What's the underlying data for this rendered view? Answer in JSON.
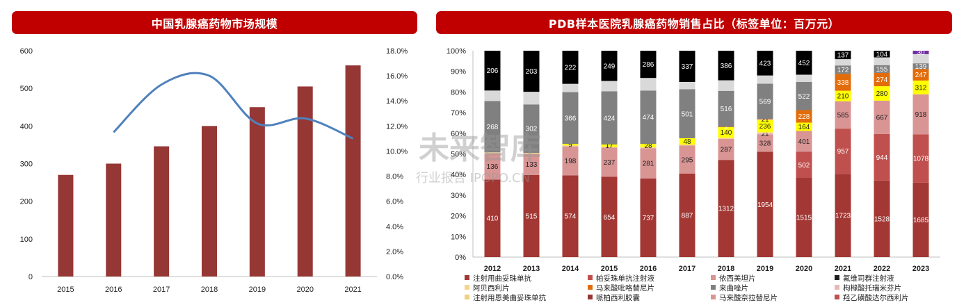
{
  "left_title": "中国乳腺癌药物市场规模",
  "right_title": "PDB样本医院乳腺癌药物销售占比（标签单位：百万元）",
  "watermark": {
    "line1": "未来智库",
    "line2": "行业报告 IPOPO.CN"
  },
  "chart_data": [
    {
      "type": "bar",
      "title": "中国乳腺癌药物市场规模",
      "categories": [
        "2015",
        "2016",
        "2017",
        "2018",
        "2019",
        "2020",
        "2021"
      ],
      "series": [
        {
          "values": [
            270,
            300,
            346,
            400,
            450,
            505,
            561
          ],
          "color": "#953735"
        },
        {
          "type": "line",
          "axis": "right",
          "values": [
            null,
            11.5,
            15.3,
            16.0,
            12.2,
            12.6,
            11.0
          ],
          "color": "#4f81bd"
        }
      ],
      "ylim": [
        0,
        600
      ],
      "yticks": [
        "0",
        "100",
        "200",
        "300",
        "400",
        "500",
        "600"
      ],
      "y2lim": [
        0,
        18
      ],
      "y2ticks": [
        "0.0%",
        "2.0%",
        "4.0%",
        "6.0%",
        "8.0%",
        "10.0%",
        "12.0%",
        "14.0%",
        "16.0%",
        "18.0%"
      ]
    },
    {
      "type": "bar",
      "stacked": "percent",
      "title": "PDB样本医院乳腺癌药物销售占比（标签单位：百万元）",
      "categories": [
        "2012",
        "2013",
        "2014",
        "2015",
        "2016",
        "2017",
        "2018",
        "2019",
        "2020",
        "2021",
        "2022",
        "2023"
      ],
      "yticks": [
        "0%",
        "10%",
        "20%",
        "30%",
        "40%",
        "50%",
        "60%",
        "70%",
        "80%",
        "90%",
        "100%"
      ],
      "segments": [
        {
          "name": "注射用曲妥珠单抗",
          "color": "#a33733",
          "text": "#ffffff",
          "pct": [
            37,
            39,
            39.5,
            38.5,
            37.5,
            40,
            46,
            51,
            38,
            39.5,
            34.5,
            32.5
          ],
          "labels": [
            "410",
            "515",
            "574",
            "654",
            "737",
            "887",
            "1312",
            "1954",
            "1515",
            "1723",
            "1528",
            "1685"
          ]
        },
        {
          "name": "帕妥珠单抗注射液",
          "color": "#c0504d",
          "text": "#ffffff",
          "pct": [
            0,
            0,
            0,
            0,
            0,
            0,
            0,
            0,
            12.5,
            21.5,
            21,
            21
          ],
          "labels": [
            "",
            "",
            "",
            "",
            "",
            "",
            "",
            "",
            "502",
            "957",
            "944",
            "1078"
          ]
        },
        {
          "name": "依西美坦片",
          "color": "#d99594",
          "text": "#222222",
          "pct": [
            12.5,
            10,
            14,
            14,
            14.5,
            13.5,
            10,
            8.5,
            10,
            13,
            15,
            17.5
          ],
          "labels": [
            "136",
            "133",
            "198",
            "237",
            "281",
            "295",
            "287",
            "328",
            "401",
            "585",
            "667",
            "918"
          ]
        },
        {
          "name": "枸橼酸托瑞米芬片",
          "color": "#e6b9b8",
          "text": "#222222",
          "pct": [
            0,
            0,
            0,
            0,
            0,
            0,
            0,
            0.5,
            0,
            0,
            0,
            0
          ],
          "labels": [
            "",
            "",
            "",
            "",
            "",
            "",
            "",
            "21",
            "",
            "",
            "",
            ""
          ]
        },
        {
          "name": "阿贝西利片",
          "color": "#f5d48f",
          "text": "#222222",
          "pct": [
            0.5,
            0.5,
            0.5,
            0.5,
            0.5,
            0.5,
            0.5,
            0.5,
            0,
            0,
            0,
            0
          ],
          "labels": [
            "",
            "",
            "",
            "",
            "",
            "",
            "",
            "",
            "",
            "",
            "",
            ""
          ]
        },
        {
          "name": "氟维司群注射液",
          "color": "#ffff00",
          "text": "#222222",
          "pct": [
            0,
            0,
            0.7,
            1,
            1.5,
            3,
            5,
            6,
            4,
            5,
            6.5,
            6
          ],
          "labels": [
            "",
            "",
            "9",
            "17",
            "28",
            "48",
            "140",
            "236",
            "164",
            "210",
            "280",
            "312"
          ]
        },
        {
          "name": "哌柏西利胶囊",
          "color": "#d99594",
          "text": "#222222",
          "pct": [
            0,
            0,
            0,
            0,
            0,
            0,
            0,
            0.5,
            0,
            0,
            0,
            0
          ],
          "labels": [
            "",
            "",
            "",
            "",
            "",
            "",
            "",
            "21",
            "",
            "",
            "",
            ""
          ]
        },
        {
          "name": "马来酸吡咯替尼片",
          "color": "#e36c0a",
          "text": "#ffffff",
          "pct": [
            0,
            0,
            0,
            0,
            0,
            0,
            0.2,
            0,
            6,
            8,
            6,
            5
          ],
          "labels": [
            "",
            "",
            "",
            "",
            "",
            "",
            "2",
            "",
            "228",
            "338",
            "274",
            "247"
          ]
        },
        {
          "name": "来曲唑片",
          "color": "#808080",
          "text": "#ffffff",
          "pct": [
            24.5,
            23,
            25,
            25.5,
            25.5,
            23.5,
            17,
            17,
            13.5,
            4,
            3.5,
            2.5
          ],
          "labels": [
            "268",
            "302",
            "366",
            "424",
            "474",
            "501",
            "516",
            "569",
            "522",
            "172",
            "155",
            "139"
          ]
        },
        {
          "name": "羟乙磺酸达尔西利片",
          "color": "#d9d9d9",
          "text": "#222222",
          "pct": [
            5,
            6,
            4,
            5,
            6,
            3.5,
            5,
            4,
            3.5,
            3,
            3.5,
            4
          ],
          "labels": [
            "",
            "",
            "",
            "",
            "",
            "",
            "",
            "",
            "",
            "",
            "",
            ""
          ]
        },
        {
          "name": "注射用恩美曲妥珠单抗",
          "color": "#000000",
          "text": "#ffffff",
          "pct": [
            19,
            19.5,
            16,
            14.5,
            13,
            15,
            14,
            12,
            11.5,
            4,
            3,
            0
          ],
          "labels": [
            "206",
            "203",
            "222",
            "249",
            "286",
            "337",
            "386",
            "423",
            "452",
            "137",
            "104",
            ""
          ]
        },
        {
          "name": "马来酸奈拉替尼片",
          "color": "#7030a0",
          "text": "#ffffff",
          "pct": [
            0,
            0,
            0,
            0,
            0,
            0,
            0,
            0,
            0,
            0,
            0,
            1.5
          ],
          "labels": [
            "",
            "",
            "",
            "",
            "",
            "",
            "",
            "",
            "",
            "",
            "",
            "30"
          ]
        }
      ],
      "legend": [
        {
          "label": "注射用曲妥珠单抗",
          "color": "#a33733"
        },
        {
          "label": "帕妥珠单抗注射液",
          "color": "#c0504d"
        },
        {
          "label": "依西美坦片",
          "color": "#d99594"
        },
        {
          "label": "氟维司群注射液",
          "color": "#1f1f1f"
        },
        {
          "label": "阿贝西利片",
          "color": "#f5d48f"
        },
        {
          "label": "马来酸吡咯替尼片",
          "color": "#e36c0a"
        },
        {
          "label": "来曲唑片",
          "color": "#808080"
        },
        {
          "label": "枸橼酸托瑞米芬片",
          "color": "#e6b9b8"
        },
        {
          "label": "注射用恩美曲妥珠单抗",
          "color": "#f0d080"
        },
        {
          "label": "哌柏西利胶囊",
          "color": "#953735"
        },
        {
          "label": "马来酸奈拉替尼片",
          "color": "#d99594"
        },
        {
          "label": "羟乙磺酸达尔西利片",
          "color": "#c0504d"
        }
      ]
    }
  ]
}
